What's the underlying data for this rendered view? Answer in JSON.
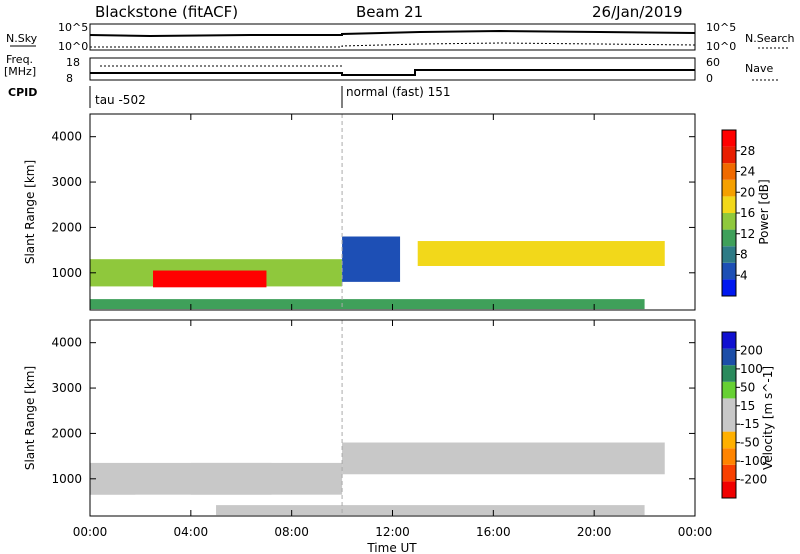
{
  "header": {
    "station": "Blackstone (fitACF)",
    "beam": "Beam 21",
    "date": "26/Jan/2019"
  },
  "top_panels": {
    "nsky_label": "N.Sky",
    "nsearch_label": "N.Search",
    "freq_label": "Freq.",
    "freq_unit": "[MHz]",
    "nave_label": "Nave",
    "cpid_label": "CPID",
    "noise_ticks": [
      "10^5",
      "10^0"
    ],
    "freq_ticks": [
      "18",
      "8"
    ],
    "nave_ticks": [
      "60",
      "0"
    ],
    "cpid_segments": [
      {
        "label": "tau -502",
        "start_hour": 0
      },
      {
        "label": "normal (fast) 151",
        "start_hour": 10
      }
    ]
  },
  "axes": {
    "y_label": "Slant Range [km]",
    "x_label": "Time UT",
    "x_ticks": [
      "00:00",
      "04:00",
      "08:00",
      "12:00",
      "16:00",
      "20:00",
      "00:00"
    ],
    "y_ticks": [
      "1000",
      "2000",
      "3000",
      "4000"
    ]
  },
  "colors": {
    "power_scale": [
      "#0018f0",
      "#1d4fb5",
      "#2e7b86",
      "#3fa05a",
      "#8fc83c",
      "#f2d81a",
      "#f5a000",
      "#f06a00",
      "#e81e00",
      "#ff0000"
    ],
    "velocity_scale": [
      "#f00000",
      "#f84000",
      "#ff8400",
      "#ffb000",
      "#c8c8c8",
      "#c8c8c8",
      "#66d033",
      "#2a8a5c",
      "#1c4ea8",
      "#1010d0"
    ]
  },
  "chart_data": [
    {
      "type": "heatmap",
      "title": "",
      "quantity": "Power",
      "colorbar_label": "Power [dB]",
      "colorbar_ticks": [
        "4",
        "8",
        "12",
        "16",
        "20",
        "24",
        "28"
      ],
      "clim": [
        0,
        32
      ],
      "xlim_hours": [
        0,
        24
      ],
      "ylim_km": [
        180,
        4500
      ],
      "regions": [
        {
          "t_start": 0.0,
          "t_end": 10.0,
          "range_min": 700,
          "range_max": 1300,
          "value": 14
        },
        {
          "t_start": 2.5,
          "t_end": 7.0,
          "range_min": 680,
          "range_max": 1050,
          "value": 29
        },
        {
          "t_start": 10.0,
          "t_end": 12.3,
          "range_min": 800,
          "range_max": 1800,
          "value": 6
        },
        {
          "t_start": 13.0,
          "t_end": 22.8,
          "range_min": 1150,
          "range_max": 1700,
          "value": 18
        },
        {
          "t_start": 0.0,
          "t_end": 22.0,
          "range_min": 200,
          "range_max": 420,
          "value": 10
        }
      ]
    },
    {
      "type": "heatmap",
      "title": "",
      "quantity": "Velocity",
      "colorbar_label": "Velocity [m s^-1]",
      "colorbar_ticks": [
        "200",
        "100",
        "50",
        "15",
        "-15",
        "-50",
        "-100",
        "-200"
      ],
      "clim": [
        -250,
        250
      ],
      "xlim_hours": [
        0,
        24
      ],
      "ylim_km": [
        180,
        4500
      ],
      "regions": [
        {
          "t_start": 0.0,
          "t_end": 10.0,
          "range_min": 650,
          "range_max": 1350,
          "value": 0
        },
        {
          "t_start": 0.0,
          "t_end": 1.8,
          "range_min": 650,
          "range_max": 1150,
          "value": 40
        },
        {
          "t_start": 4.0,
          "t_end": 7.2,
          "range_min": 650,
          "range_max": 1350,
          "value": -40
        },
        {
          "t_start": 10.0,
          "t_end": 22.8,
          "range_min": 1100,
          "range_max": 1800,
          "value": 0
        },
        {
          "t_start": 5.0,
          "t_end": 22.0,
          "range_min": 200,
          "range_max": 420,
          "value": -45
        }
      ]
    }
  ]
}
